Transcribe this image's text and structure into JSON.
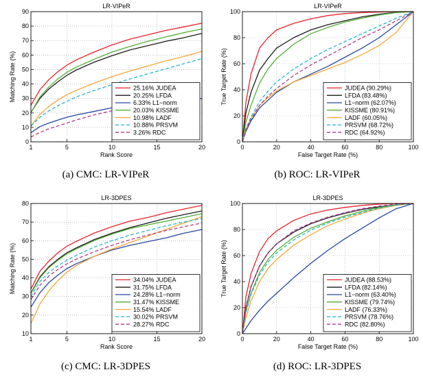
{
  "colors": {
    "JUDEA": "#e8202a",
    "LFDA": "#1a1a1a",
    "L1-norm": "#2545a0",
    "KISSME": "#4fad32",
    "LADF": "#f5a636",
    "PRSVM": "#22b5c8",
    "RDC": "#b03a8c"
  },
  "chart_data": [
    {
      "type": "line",
      "kind": "cmc",
      "title": "LR-VIPeR",
      "xlabel": "Rank Score",
      "ylabel": "Matching Rate (%)",
      "caption": "(a)  CMC: LR-VIPeR",
      "xlim": [
        1,
        20
      ],
      "ylim": [
        0,
        90
      ],
      "xticks": [
        1,
        5,
        10,
        15,
        20
      ],
      "yticks": [
        0,
        10,
        20,
        30,
        40,
        50,
        60,
        70,
        80,
        90
      ],
      "grid": true,
      "legend": "bottom-right",
      "x": [
        1,
        2,
        3,
        4,
        5,
        6,
        8,
        10,
        12,
        14,
        16,
        18,
        20
      ],
      "series": [
        {
          "name": "25.16% JUDEA",
          "key": "JUDEA",
          "dash": "",
          "values": [
            25.2,
            36,
            43,
            48.5,
            53,
            56.5,
            62,
            67,
            71,
            74,
            77,
            79.5,
            82
          ]
        },
        {
          "name": "20.25% LFDA",
          "key": "LFDA",
          "dash": "",
          "values": [
            20.3,
            30,
            36.5,
            41.5,
            46,
            49.5,
            55,
            59.5,
            63.5,
            66.5,
            69.5,
            72,
            75
          ]
        },
        {
          "name": "6.33% L1−norm",
          "key": "L1-norm",
          "dash": "",
          "values": [
            6.3,
            10.5,
            13,
            15,
            17,
            18.5,
            21,
            23.5,
            25.5,
            27,
            28,
            29,
            30
          ]
        },
        {
          "name": "20.03% KISSME",
          "key": "KISSME",
          "dash": "",
          "values": [
            20,
            31,
            38,
            43.5,
            48,
            51.5,
            57,
            62,
            66,
            69.5,
            72.5,
            75.5,
            78
          ]
        },
        {
          "name": "10.98% LADF",
          "key": "LADF",
          "dash": "",
          "values": [
            11,
            19,
            24.5,
            29,
            32.5,
            35.5,
            40.5,
            45,
            49,
            52.5,
            56,
            59,
            62.5
          ]
        },
        {
          "name": "10.88% PRSVM",
          "key": "PRSVM",
          "dash": "5,3",
          "values": [
            10.9,
            17,
            21.5,
            25,
            28,
            31,
            35.5,
            39.5,
            43.5,
            47,
            50.5,
            54,
            57.5
          ]
        },
        {
          "name": "3.26% RDC",
          "key": "RDC",
          "dash": "5,3",
          "values": [
            3.3,
            6.5,
            9,
            11,
            13,
            15,
            18.5,
            21.5,
            24,
            26,
            27.5,
            29,
            30
          ]
        }
      ]
    },
    {
      "type": "line",
      "kind": "roc",
      "title": "LR-VIPeR",
      "xlabel": "False Target Rate (%)",
      "ylabel": "True Target Rate (%)",
      "caption": "(b)  ROC: LR-VIPeR",
      "xlim": [
        0,
        100
      ],
      "ylim": [
        0,
        100
      ],
      "xticks": [
        0,
        20,
        40,
        60,
        80,
        100
      ],
      "yticks": [
        0,
        20,
        40,
        60,
        80,
        100
      ],
      "grid": true,
      "legend": "bottom-right",
      "x": [
        0,
        2,
        5,
        10,
        15,
        20,
        30,
        40,
        50,
        60,
        70,
        80,
        90,
        100
      ],
      "series": [
        {
          "name": "JUDEA (90.29%)",
          "key": "JUDEA",
          "dash": "",
          "values": [
            0,
            30,
            52,
            72,
            80,
            86,
            91,
            94.5,
            97,
            98.5,
            99.3,
            99.7,
            100,
            100
          ]
        },
        {
          "name": "LFDA (83.48%)",
          "key": "LFDA",
          "dash": "",
          "values": [
            0,
            22,
            38,
            55,
            64,
            72,
            80,
            86,
            90,
            93,
            96,
            98,
            99.5,
            100
          ]
        },
        {
          "name": "L1−norm (62.07%)",
          "key": "L1-norm",
          "dash": "",
          "values": [
            0,
            8,
            16,
            26,
            32,
            38,
            46,
            52,
            58,
            65,
            72,
            80,
            90,
            100
          ]
        },
        {
          "name": "KISSME (80.91%)",
          "key": "KISSME",
          "dash": "",
          "values": [
            0,
            15,
            28,
            45,
            56,
            64,
            75,
            83,
            88,
            92,
            95,
            97.5,
            99.3,
            100
          ]
        },
        {
          "name": "LADF (60.05%)",
          "key": "LADF",
          "dash": "",
          "values": [
            0,
            10,
            18,
            28,
            34,
            39,
            46,
            51,
            56,
            61,
            67,
            74,
            84,
            100
          ]
        },
        {
          "name": "PRSVM (68.72%)",
          "key": "PRSVM",
          "dash": "5,3",
          "values": [
            0,
            10,
            19,
            31,
            39,
            46,
            56,
            64,
            71,
            77,
            83,
            89,
            95,
            100
          ]
        },
        {
          "name": "RDC (64.92%)",
          "key": "RDC",
          "dash": "5,3",
          "values": [
            0,
            9,
            17,
            28,
            35,
            41,
            51,
            59,
            66,
            73,
            80,
            86,
            93,
            100
          ]
        }
      ]
    },
    {
      "type": "line",
      "kind": "cmc",
      "title": "LR-3DPES",
      "xlabel": "Rank Score",
      "ylabel": "Matching Rate (%)",
      "caption": "(c)  CMC: LR-3DPES",
      "xlim": [
        1,
        20
      ],
      "ylim": [
        10,
        80
      ],
      "xticks": [
        1,
        5,
        10,
        15,
        20
      ],
      "yticks": [
        10,
        20,
        30,
        40,
        50,
        60,
        70,
        80
      ],
      "grid": true,
      "legend": "bottom-right",
      "x": [
        1,
        2,
        3,
        4,
        5,
        6,
        8,
        10,
        12,
        14,
        16,
        18,
        20
      ],
      "series": [
        {
          "name": "34.04% JUDEA",
          "key": "JUDEA",
          "dash": "",
          "values": [
            34,
            43.5,
            49,
            53.5,
            57,
            59.5,
            64,
            67.5,
            70.5,
            72.5,
            75,
            77,
            79
          ]
        },
        {
          "name": "31.75% LFDA",
          "key": "LFDA",
          "dash": "",
          "values": [
            31.8,
            40.5,
            46,
            50,
            53.5,
            56,
            60.5,
            64,
            67,
            69.5,
            72,
            74,
            76
          ]
        },
        {
          "name": "24.28% L1−norm",
          "key": "L1-norm",
          "dash": "",
          "values": [
            24.3,
            32,
            37.5,
            41.5,
            45,
            47.5,
            51.5,
            55,
            57.5,
            59.5,
            61.5,
            64,
            66
          ]
        },
        {
          "name": "31.47% KISSME",
          "key": "KISSME",
          "dash": "",
          "values": [
            31.5,
            40,
            45.5,
            49.5,
            53,
            55.5,
            60,
            63.5,
            66.5,
            68.5,
            70.5,
            72.5,
            74.5
          ]
        },
        {
          "name": "15.54% LADF",
          "key": "LADF",
          "dash": "",
          "values": [
            15.5,
            26,
            33,
            38.5,
            43,
            46.5,
            51.5,
            55.5,
            59,
            62.5,
            66,
            69.5,
            73
          ]
        },
        {
          "name": "30.02% PRSVM",
          "key": "PRSVM",
          "dash": "5,3",
          "values": [
            30,
            38,
            43,
            46.5,
            49.5,
            52,
            56.5,
            60,
            63,
            65.5,
            68,
            70,
            72
          ]
        },
        {
          "name": "28.27% RDC",
          "key": "RDC",
          "dash": "5,3",
          "values": [
            28.3,
            36,
            41,
            44.5,
            47.5,
            50,
            54,
            57.5,
            60.5,
            63,
            65.5,
            67.5,
            69.5
          ]
        }
      ]
    },
    {
      "type": "line",
      "kind": "roc",
      "title": "LR-3DPES",
      "xlabel": "False Target Rate (%)",
      "ylabel": "True Target Rate (%)",
      "caption": "(d)  ROC: LR-3DPES",
      "xlim": [
        0,
        100
      ],
      "ylim": [
        0,
        100
      ],
      "xticks": [
        0,
        20,
        40,
        60,
        80,
        100
      ],
      "yticks": [
        0,
        20,
        40,
        60,
        80,
        100
      ],
      "grid": true,
      "legend": "bottom-right",
      "x": [
        0,
        2,
        5,
        10,
        15,
        20,
        30,
        40,
        50,
        60,
        70,
        80,
        90,
        100
      ],
      "series": [
        {
          "name": "JUDEA (88.53%)",
          "key": "JUDEA",
          "dash": "",
          "values": [
            0,
            28,
            46,
            63,
            73,
            79,
            87,
            92,
            95,
            97,
            98.5,
            99.5,
            100,
            100
          ]
        },
        {
          "name": "LFDA (82.14%)",
          "key": "LFDA",
          "dash": "",
          "values": [
            0,
            20,
            36,
            52,
            62,
            69,
            78,
            84.5,
            89,
            92.5,
            95.5,
            97.5,
            99,
            100
          ]
        },
        {
          "name": "L1−norm (63.40%)",
          "key": "L1-norm",
          "dash": "",
          "values": [
            0,
            4,
            10,
            18,
            25,
            31,
            43,
            54,
            64,
            73,
            81,
            89,
            96,
            100
          ]
        },
        {
          "name": "KISSME (79.74%)",
          "key": "KISSME",
          "dash": "",
          "values": [
            0,
            17,
            31,
            47,
            57,
            64,
            74,
            81,
            86,
            90.5,
            94,
            97,
            99,
            100
          ]
        },
        {
          "name": "LADF (76.33%)",
          "key": "LADF",
          "dash": "",
          "values": [
            0,
            12,
            25,
            40,
            50,
            57,
            68,
            76,
            83,
            88,
            92.5,
            96,
            98.5,
            100
          ]
        },
        {
          "name": "PRSVM (78.76%)",
          "key": "PRSVM",
          "dash": "5,3",
          "values": [
            0,
            16,
            30,
            45,
            55,
            62,
            72,
            79.5,
            85,
            89.5,
            93,
            96.5,
            98.8,
            100
          ]
        },
        {
          "name": "RDC (82.80%)",
          "key": "RDC",
          "dash": "5,3",
          "values": [
            0,
            20,
            36,
            52,
            62,
            69,
            79,
            85,
            89.5,
            93,
            96,
            98,
            99.5,
            100
          ]
        }
      ]
    }
  ]
}
